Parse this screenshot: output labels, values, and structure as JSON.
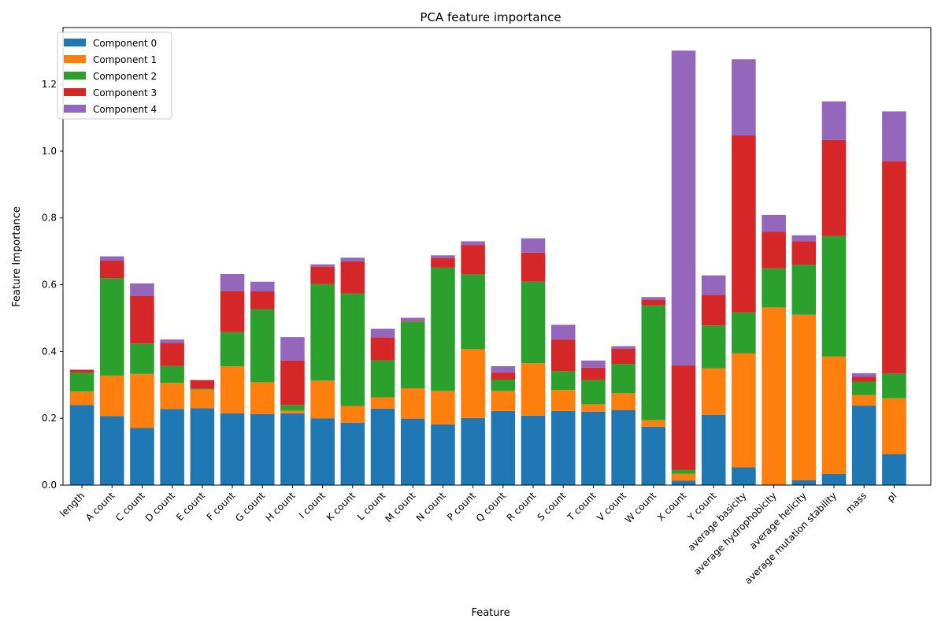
{
  "chart_data": {
    "type": "bar",
    "stacked": true,
    "title": "PCA feature importance",
    "xlabel": "Feature",
    "ylabel": "Feature Importance",
    "ylim": [
      0,
      1.37
    ],
    "yticks": [
      "0.0",
      "0.2",
      "0.4",
      "0.6",
      "0.8",
      "1.0",
      "1.2"
    ],
    "ytick_values": [
      0,
      0.2,
      0.4,
      0.6,
      0.8,
      1.0,
      1.2
    ],
    "grid": false,
    "legend_position": "top-left",
    "categories": [
      "length",
      "A count",
      "C count",
      "D count",
      "E count",
      "F count",
      "G count",
      "H count",
      "I count",
      "K count",
      "L count",
      "M count",
      "N count",
      "P count",
      "Q count",
      "R count",
      "S count",
      "T count",
      "V count",
      "W count",
      "X count",
      "Y count",
      "average basicity",
      "average hydrophobicity",
      "average helicity",
      "average mutation stability",
      "mass",
      "pI"
    ],
    "series": [
      {
        "name": "Component 0",
        "color": "#1f77b4",
        "values": [
          0.24,
          0.207,
          0.171,
          0.228,
          0.23,
          0.215,
          0.213,
          0.215,
          0.2,
          0.187,
          0.229,
          0.199,
          0.182,
          0.201,
          0.222,
          0.208,
          0.222,
          0.22,
          0.225,
          0.175,
          0.013,
          0.21,
          0.053,
          0.002,
          0.015,
          0.033,
          0.238,
          0.093
        ]
      },
      {
        "name": "Component 1",
        "color": "#ff7f0e",
        "values": [
          0.04,
          0.121,
          0.162,
          0.078,
          0.056,
          0.141,
          0.095,
          0.008,
          0.113,
          0.05,
          0.034,
          0.091,
          0.1,
          0.206,
          0.06,
          0.157,
          0.063,
          0.022,
          0.05,
          0.02,
          0.021,
          0.14,
          0.342,
          0.53,
          0.495,
          0.352,
          0.032,
          0.167
        ]
      },
      {
        "name": "Component 2",
        "color": "#2ca02c",
        "values": [
          0.057,
          0.292,
          0.091,
          0.051,
          0.003,
          0.102,
          0.219,
          0.017,
          0.289,
          0.337,
          0.111,
          0.2,
          0.369,
          0.224,
          0.034,
          0.244,
          0.056,
          0.073,
          0.088,
          0.343,
          0.012,
          0.128,
          0.122,
          0.117,
          0.15,
          0.361,
          0.04,
          0.074
        ]
      },
      {
        "name": "Component 3",
        "color": "#d62728",
        "values": [
          0.008,
          0.052,
          0.142,
          0.069,
          0.025,
          0.123,
          0.053,
          0.133,
          0.052,
          0.096,
          0.068,
          0.002,
          0.029,
          0.088,
          0.021,
          0.087,
          0.094,
          0.037,
          0.045,
          0.017,
          0.313,
          0.092,
          0.53,
          0.11,
          0.07,
          0.287,
          0.015,
          0.636
        ]
      },
      {
        "name": "Component 4",
        "color": "#9467bd",
        "values": [
          0.001,
          0.013,
          0.038,
          0.01,
          0.001,
          0.051,
          0.029,
          0.07,
          0.007,
          0.011,
          0.026,
          0.009,
          0.008,
          0.011,
          0.019,
          0.043,
          0.045,
          0.021,
          0.008,
          0.008,
          0.942,
          0.058,
          0.228,
          0.05,
          0.018,
          0.116,
          0.01,
          0.149
        ]
      }
    ]
  }
}
